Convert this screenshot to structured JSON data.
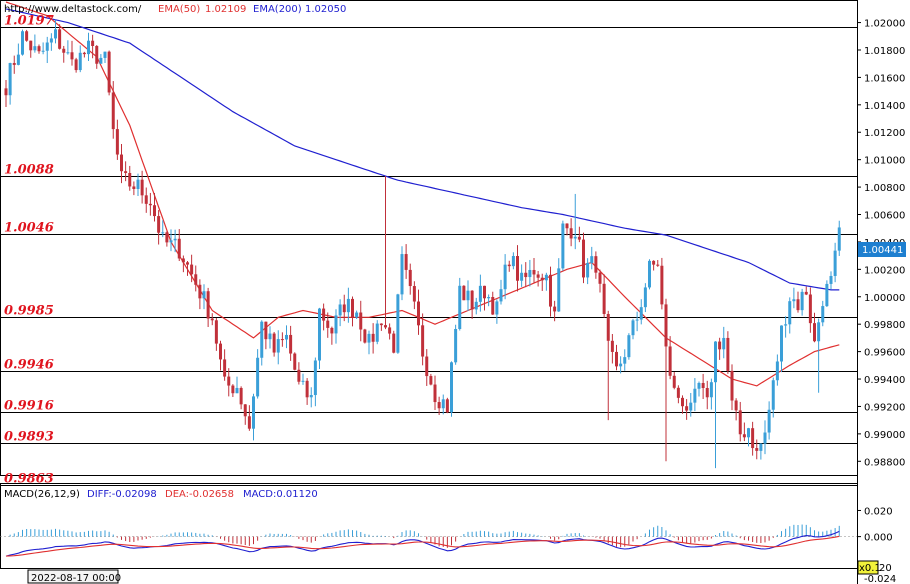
{
  "header": {
    "url": "http://www.deltastock.com/",
    "ema50_label": "EMA(50)",
    "ema50_value": "1.02109",
    "ema200_label": "EMA(200)",
    "ema200_value": "1.02050"
  },
  "macd_header": {
    "label": "MACD(26,12,9)",
    "diff": "DIFF:-0.02098",
    "dea": "DEA:-0.02658",
    "macd": "MACD:0.01120"
  },
  "footer": {
    "date": "2022-08-17 00:00",
    "zoom": "x0.1",
    "zoom_suffix": "20"
  },
  "colors": {
    "up": "#3a9fd8",
    "down": "#c0303a",
    "ema50": "#e03030",
    "ema200": "#2020d0",
    "level_text": "#e0141e",
    "current_box": "#1e7fd0"
  },
  "current_price": "1.00441",
  "chart_data": {
    "type": "candlestick",
    "y_axis": {
      "ylim": [
        0.987,
        1.0215
      ],
      "ticks": [
        "1.02000",
        "1.01800",
        "1.01600",
        "1.01400",
        "1.01200",
        "1.01000",
        "1.00800",
        "1.00600",
        "1.00400",
        "1.00200",
        "1.00000",
        "0.99800",
        "0.99600",
        "0.99400",
        "0.99200",
        "0.99000",
        "0.98800"
      ]
    },
    "levels": [
      {
        "label": "1.0197",
        "value": 1.0197
      },
      {
        "label": "1.0088",
        "value": 1.0088
      },
      {
        "label": "1.0046",
        "value": 1.0046
      },
      {
        "label": "0.9985",
        "value": 0.9985
      },
      {
        "label": "0.9946",
        "value": 0.9946
      },
      {
        "label": "0.9916",
        "value": 0.9916
      },
      {
        "label": "0.9893",
        "value": 0.9893
      },
      {
        "label": "0.9863",
        "value": 0.9863
      }
    ],
    "close_anchors": [
      [
        0,
        1.0155
      ],
      [
        4,
        1.019
      ],
      [
        8,
        1.0175
      ],
      [
        12,
        1.019
      ],
      [
        16,
        1.017
      ],
      [
        20,
        1.018
      ],
      [
        24,
        1.0172
      ],
      [
        26,
        1.012
      ],
      [
        28,
        1.0085
      ],
      [
        32,
        1.008
      ],
      [
        35,
        1.007
      ],
      [
        38,
        1.004
      ],
      [
        42,
        1.0035
      ],
      [
        46,
        1.001
      ],
      [
        50,
        0.9985
      ],
      [
        53,
        0.9935
      ],
      [
        56,
        0.9935
      ],
      [
        59,
        0.9905
      ],
      [
        62,
        0.998
      ],
      [
        65,
        0.996
      ],
      [
        68,
        0.997
      ],
      [
        71,
        0.9935
      ],
      [
        74,
        0.9925
      ],
      [
        76,
        0.999
      ],
      [
        79,
        0.9975
      ],
      [
        82,
        0.9995
      ],
      [
        85,
        0.999
      ],
      [
        88,
        0.9965
      ],
      [
        91,
        0.9985
      ],
      [
        94,
        0.9965
      ],
      [
        96,
        1.0025
      ],
      [
        99,
        0.999
      ],
      [
        101,
        0.996
      ],
      [
        104,
        0.993
      ],
      [
        107,
        0.992
      ],
      [
        110,
        1.0005
      ],
      [
        113,
        0.9995
      ],
      [
        116,
        1.0005
      ],
      [
        119,
        0.999
      ],
      [
        122,
        1.003
      ],
      [
        125,
        1.001
      ],
      [
        128,
        1.002
      ],
      [
        131,
        1.0015
      ],
      [
        133,
        0.9985
      ],
      [
        135,
        1.005
      ],
      [
        138,
        1.005
      ],
      [
        140,
        1.002
      ],
      [
        143,
        1.0025
      ],
      [
        146,
        0.996
      ],
      [
        148,
        0.9945
      ],
      [
        150,
        0.996
      ],
      [
        153,
        0.9985
      ],
      [
        156,
        1.002
      ],
      [
        158,
        1.0025
      ],
      [
        160,
        0.996
      ],
      [
        162,
        0.993
      ],
      [
        164,
        0.9925
      ],
      [
        166,
        0.9915
      ],
      [
        168,
        0.9935
      ],
      [
        170,
        0.992
      ],
      [
        172,
        0.9965
      ],
      [
        174,
        0.997
      ],
      [
        176,
        0.992
      ],
      [
        178,
        0.99
      ],
      [
        180,
        0.9905
      ],
      [
        182,
        0.9885
      ],
      [
        184,
        0.99
      ],
      [
        186,
        0.9935
      ],
      [
        188,
        0.9975
      ],
      [
        190,
        1.0
      ],
      [
        192,
        0.9995
      ],
      [
        194,
        1.0005
      ],
      [
        196,
        0.9965
      ],
      [
        198,
        1.0
      ],
      [
        200,
        1.001
      ],
      [
        202,
        1.0044
      ]
    ],
    "spikes": [
      [
        92,
        1.0088
      ],
      [
        138,
        1.0075
      ],
      [
        146,
        0.991
      ],
      [
        160,
        0.988
      ],
      [
        172,
        0.9875
      ],
      [
        197,
        0.993
      ]
    ],
    "ema50_anchors": [
      [
        0,
        1.0215
      ],
      [
        10,
        1.0205
      ],
      [
        22,
        1.0175
      ],
      [
        30,
        1.0125
      ],
      [
        40,
        1.004
      ],
      [
        50,
        0.999
      ],
      [
        60,
        0.997
      ],
      [
        66,
        0.9985
      ],
      [
        72,
        0.999
      ],
      [
        80,
        0.9985
      ],
      [
        88,
        0.9985
      ],
      [
        96,
        0.999
      ],
      [
        104,
        0.998
      ],
      [
        112,
        0.999
      ],
      [
        120,
        1.0
      ],
      [
        128,
        1.001
      ],
      [
        136,
        1.002
      ],
      [
        142,
        1.0025
      ],
      [
        150,
        1.0
      ],
      [
        160,
        0.997
      ],
      [
        168,
        0.9955
      ],
      [
        176,
        0.994
      ],
      [
        182,
        0.9935
      ],
      [
        190,
        0.995
      ],
      [
        196,
        0.996
      ],
      [
        202,
        0.9965
      ]
    ],
    "ema200_anchors": [
      [
        0,
        1.021
      ],
      [
        15,
        1.02
      ],
      [
        30,
        1.0185
      ],
      [
        40,
        1.0165
      ],
      [
        55,
        1.0135
      ],
      [
        70,
        1.011
      ],
      [
        85,
        1.0095
      ],
      [
        95,
        1.0085
      ],
      [
        110,
        1.0075
      ],
      [
        125,
        1.0065
      ],
      [
        135,
        1.006
      ],
      [
        150,
        1.005
      ],
      [
        160,
        1.0045
      ],
      [
        170,
        1.0035
      ],
      [
        180,
        1.0025
      ],
      [
        190,
        1.001
      ],
      [
        200,
        1.0005
      ],
      [
        202,
        1.0005
      ]
    ],
    "macd": {
      "ylim": [
        -0.024,
        0.028
      ],
      "ticks": [
        "0.020",
        "0.000",
        "-0.024"
      ]
    }
  }
}
